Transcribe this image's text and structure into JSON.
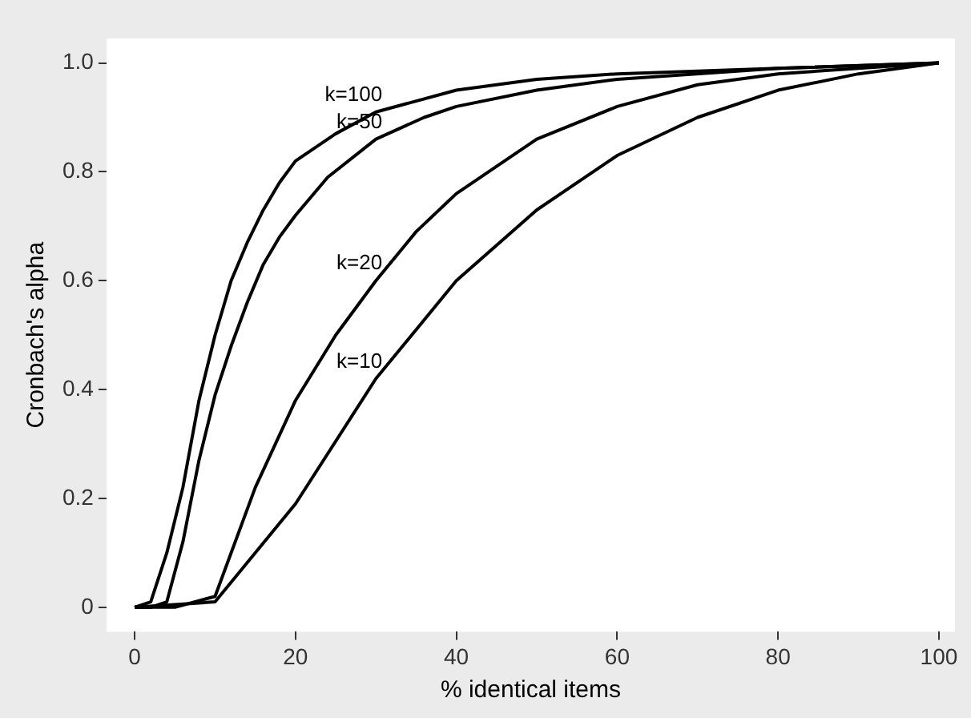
{
  "chart_data": {
    "type": "line",
    "xlabel": "% identical items",
    "ylabel": "Cronbach's alpha",
    "xlim": [
      -3.5,
      102
    ],
    "ylim": [
      -0.045,
      1.045
    ],
    "xticks": [
      0,
      20,
      40,
      60,
      80,
      100
    ],
    "yticks": [
      0,
      0.2,
      0.4,
      0.6,
      0.8,
      {
        "value": 1,
        "label": "1.0"
      }
    ],
    "grid": false,
    "legend": false,
    "marker": "none",
    "line_style": "solid",
    "series": [
      {
        "name": "k=10",
        "color": "#000000",
        "x": [
          0,
          10,
          20,
          30,
          40,
          50,
          60,
          70,
          80,
          90,
          100
        ],
        "values": [
          0,
          0.01,
          0.19,
          0.42,
          0.6,
          0.73,
          0.83,
          0.9,
          0.95,
          0.98,
          1
        ]
      },
      {
        "name": "k=20",
        "color": "#000000",
        "x": [
          0,
          5,
          10,
          15,
          20,
          25,
          30,
          35,
          40,
          45,
          50,
          60,
          70,
          80,
          90,
          100
        ],
        "values": [
          0,
          0,
          0.02,
          0.22,
          0.38,
          0.5,
          0.6,
          0.69,
          0.76,
          0.81,
          0.86,
          0.92,
          0.96,
          0.98,
          0.99,
          1
        ]
      },
      {
        "name": "k=50",
        "color": "#000000",
        "x": [
          0,
          2,
          4,
          6,
          8,
          10,
          12,
          14,
          16,
          18,
          20,
          24,
          30,
          36,
          40,
          50,
          60,
          80,
          100
        ],
        "values": [
          0,
          0,
          0.01,
          0.12,
          0.27,
          0.39,
          0.48,
          0.56,
          0.63,
          0.68,
          0.72,
          0.79,
          0.86,
          0.9,
          0.92,
          0.95,
          0.97,
          0.99,
          1
        ]
      },
      {
        "name": "k=100",
        "color": "#000000",
        "x": [
          0,
          2,
          4,
          6,
          8,
          10,
          12,
          14,
          16,
          18,
          20,
          25,
          30,
          40,
          50,
          60,
          80,
          100
        ],
        "values": [
          0,
          0.01,
          0.1,
          0.22,
          0.38,
          0.5,
          0.6,
          0.67,
          0.73,
          0.78,
          0.82,
          0.87,
          0.91,
          0.95,
          0.97,
          0.98,
          0.99,
          1
        ]
      }
    ]
  }
}
